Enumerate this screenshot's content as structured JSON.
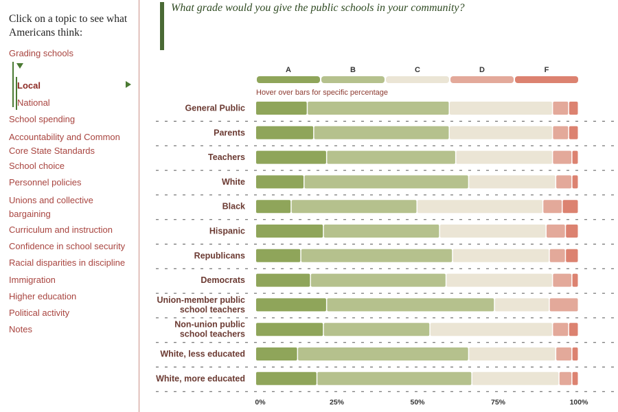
{
  "sidebar": {
    "prompt": "Click on a topic to see what Americans think:",
    "items": [
      {
        "label": "Grading schools"
      },
      {
        "label": "Local"
      },
      {
        "label": "National"
      },
      {
        "label": "School spending"
      },
      {
        "label": "Accountability and Common Core State Standards"
      },
      {
        "label": "School choice"
      },
      {
        "label": "Personnel policies"
      },
      {
        "label": "Unions and collective bargaining"
      },
      {
        "label": "Curriculum and instruction"
      },
      {
        "label": "Confidence in school security"
      },
      {
        "label": "Racial disparities in discipline"
      },
      {
        "label": "Immigration"
      },
      {
        "label": "Higher education"
      },
      {
        "label": "Political activity"
      },
      {
        "label": "Notes"
      }
    ]
  },
  "question": "What grade would you give the public schools in your community?",
  "hint": "Hover over bars for specific percentage",
  "colors": {
    "A": "#8fa55a",
    "B": "#b5c18d",
    "C": "#ebe5d5",
    "D": "#e3a99a",
    "F": "#dc8270"
  },
  "chart_data": {
    "type": "bar",
    "stacked": true,
    "orientation": "horizontal",
    "title": "What grade would you give the public schools in your community?",
    "legend": [
      "A",
      "B",
      "C",
      "D",
      "F"
    ],
    "categories": [
      "General Public",
      "Parents",
      "Teachers",
      "White",
      "Black",
      "Hispanic",
      "Republicans",
      "Democrats",
      "Union-member public school teachers",
      "Non-union public school teachers",
      "White, less educated",
      "White, more educated"
    ],
    "series": [
      {
        "name": "A",
        "values": [
          16,
          18,
          22,
          15,
          11,
          21,
          14,
          17,
          22,
          21,
          13,
          19
        ]
      },
      {
        "name": "B",
        "values": [
          44,
          42,
          40,
          51,
          39,
          36,
          47,
          42,
          52,
          33,
          53,
          48
        ]
      },
      {
        "name": "C",
        "values": [
          32,
          32,
          30,
          27,
          39,
          33,
          30,
          33,
          17,
          38,
          27,
          27
        ]
      },
      {
        "name": "D",
        "values": [
          5,
          5,
          6,
          5,
          6,
          6,
          5,
          6,
          9,
          5,
          5,
          4
        ]
      },
      {
        "name": "F",
        "values": [
          3,
          3,
          2,
          2,
          5,
          4,
          4,
          2,
          0,
          3,
          2,
          2
        ]
      }
    ],
    "xticks": [
      "0%",
      "25%",
      "50%",
      "75%",
      "100%"
    ],
    "xlim": [
      0,
      100
    ]
  }
}
